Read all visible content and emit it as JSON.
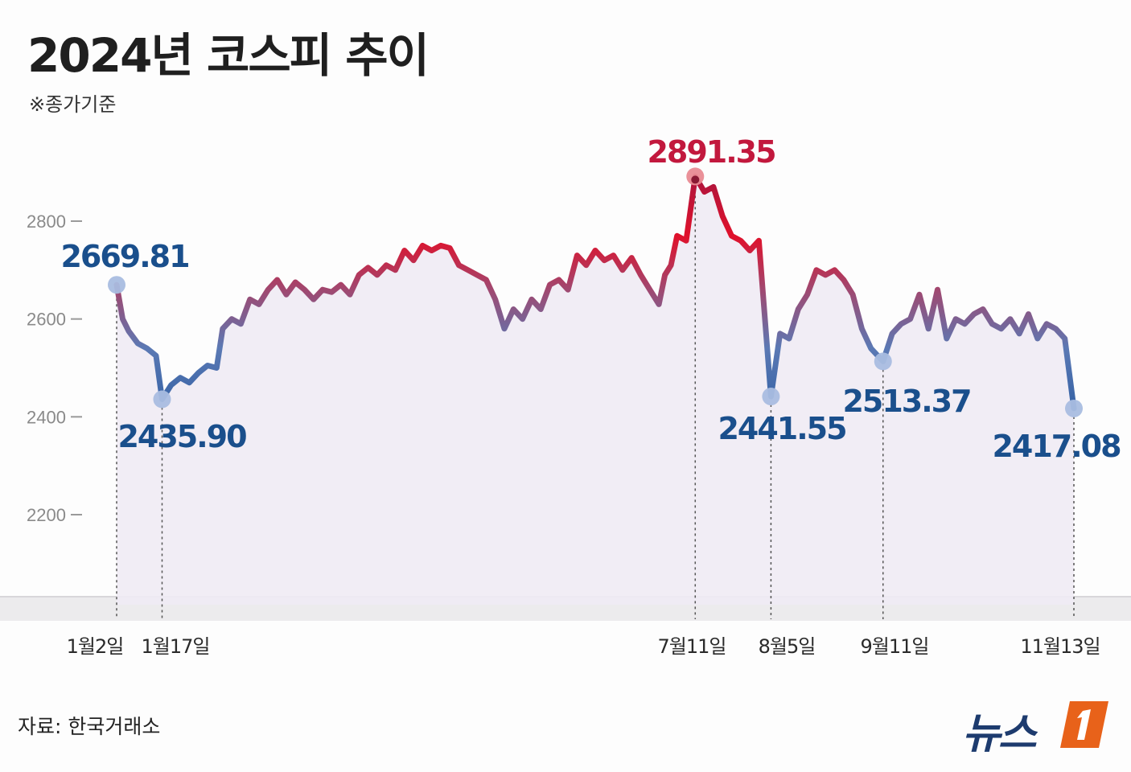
{
  "title": "2024년 코스피 추이",
  "subtitle": "※종가기준",
  "source": "자료: 한국거래소",
  "logo": {
    "text": "뉴스",
    "badge": "1"
  },
  "colors": {
    "blue": "#2f5fa3",
    "red": "#e0112b",
    "peak": "#c2183d",
    "label_blue": "#1a4f8c",
    "fill": "#efebf4"
  },
  "chart_data": {
    "type": "line",
    "title": "2024년 코스피 추이",
    "subtitle": "※종가기준",
    "ylim": [
      2200,
      2800
    ],
    "yticks": [
      2800,
      2600,
      2400,
      2200
    ],
    "ytick_labels": [
      "2800",
      "2600",
      "2400",
      "2200"
    ],
    "x_start": "2024-01-02",
    "x_end": "2024-11-13",
    "grid": false,
    "annotations": [
      {
        "date": "2024-01-02",
        "date_label": "1월2일",
        "value": 2669.81,
        "label": "2669.81",
        "color": "blue"
      },
      {
        "date": "2024-01-17",
        "date_label": "1월17일",
        "value": 2435.9,
        "label": "2435.90",
        "color": "blue"
      },
      {
        "date": "2024-07-11",
        "date_label": "7월11일",
        "value": 2891.35,
        "label": "2891.35",
        "color": "red"
      },
      {
        "date": "2024-08-05",
        "date_label": "8월5일",
        "value": 2441.55,
        "label": "2441.55",
        "color": "blue"
      },
      {
        "date": "2024-09-11",
        "date_label": "9월11일",
        "value": 2513.37,
        "label": "2513.37",
        "color": "blue"
      },
      {
        "date": "2024-11-13",
        "date_label": "11월13일",
        "value": 2417.08,
        "label": "2417.08",
        "color": "blue"
      }
    ],
    "series": [
      {
        "points": [
          [
            "2024-01-02",
            2669.81
          ],
          [
            "2024-01-04",
            2600
          ],
          [
            "2024-01-06",
            2575
          ],
          [
            "2024-01-09",
            2550
          ],
          [
            "2024-01-12",
            2540
          ],
          [
            "2024-01-15",
            2525
          ],
          [
            "2024-01-17",
            2435.9
          ],
          [
            "2024-01-20",
            2465
          ],
          [
            "2024-01-23",
            2480
          ],
          [
            "2024-01-26",
            2470
          ],
          [
            "2024-01-29",
            2490
          ],
          [
            "2024-02-01",
            2505
          ],
          [
            "2024-02-04",
            2500
          ],
          [
            "2024-02-06",
            2580
          ],
          [
            "2024-02-09",
            2600
          ],
          [
            "2024-02-12",
            2590
          ],
          [
            "2024-02-15",
            2640
          ],
          [
            "2024-02-18",
            2630
          ],
          [
            "2024-02-21",
            2660
          ],
          [
            "2024-02-24",
            2680
          ],
          [
            "2024-02-27",
            2650
          ],
          [
            "2024-03-01",
            2675
          ],
          [
            "2024-03-04",
            2660
          ],
          [
            "2024-03-07",
            2640
          ],
          [
            "2024-03-10",
            2660
          ],
          [
            "2024-03-13",
            2655
          ],
          [
            "2024-03-16",
            2670
          ],
          [
            "2024-03-19",
            2650
          ],
          [
            "2024-03-22",
            2690
          ],
          [
            "2024-03-25",
            2705
          ],
          [
            "2024-03-28",
            2690
          ],
          [
            "2024-03-31",
            2710
          ],
          [
            "2024-04-03",
            2700
          ],
          [
            "2024-04-06",
            2740
          ],
          [
            "2024-04-09",
            2720
          ],
          [
            "2024-04-12",
            2750
          ],
          [
            "2024-04-15",
            2740
          ],
          [
            "2024-04-18",
            2750
          ],
          [
            "2024-04-21",
            2745
          ],
          [
            "2024-04-24",
            2710
          ],
          [
            "2024-04-27",
            2700
          ],
          [
            "2024-04-30",
            2690
          ],
          [
            "2024-05-03",
            2680
          ],
          [
            "2024-05-06",
            2640
          ],
          [
            "2024-05-09",
            2580
          ],
          [
            "2024-05-12",
            2620
          ],
          [
            "2024-05-15",
            2600
          ],
          [
            "2024-05-18",
            2640
          ],
          [
            "2024-05-21",
            2620
          ],
          [
            "2024-05-24",
            2670
          ],
          [
            "2024-05-27",
            2680
          ],
          [
            "2024-05-30",
            2660
          ],
          [
            "2024-06-02",
            2730
          ],
          [
            "2024-06-05",
            2710
          ],
          [
            "2024-06-08",
            2740
          ],
          [
            "2024-06-11",
            2720
          ],
          [
            "2024-06-14",
            2730
          ],
          [
            "2024-06-17",
            2700
          ],
          [
            "2024-06-20",
            2725
          ],
          [
            "2024-06-23",
            2690
          ],
          [
            "2024-06-26",
            2660
          ],
          [
            "2024-06-29",
            2630
          ],
          [
            "2024-07-01",
            2690
          ],
          [
            "2024-07-03",
            2710
          ],
          [
            "2024-07-05",
            2770
          ],
          [
            "2024-07-08",
            2760
          ],
          [
            "2024-07-11",
            2891.35
          ],
          [
            "2024-07-14",
            2860
          ],
          [
            "2024-07-17",
            2870
          ],
          [
            "2024-07-20",
            2810
          ],
          [
            "2024-07-23",
            2770
          ],
          [
            "2024-07-26",
            2760
          ],
          [
            "2024-07-29",
            2740
          ],
          [
            "2024-08-01",
            2760
          ],
          [
            "2024-08-05",
            2441.55
          ],
          [
            "2024-08-08",
            2570
          ],
          [
            "2024-08-11",
            2560
          ],
          [
            "2024-08-14",
            2620
          ],
          [
            "2024-08-17",
            2650
          ],
          [
            "2024-08-20",
            2700
          ],
          [
            "2024-08-23",
            2690
          ],
          [
            "2024-08-26",
            2700
          ],
          [
            "2024-08-29",
            2680
          ],
          [
            "2024-09-01",
            2650
          ],
          [
            "2024-09-04",
            2580
          ],
          [
            "2024-09-07",
            2540
          ],
          [
            "2024-09-11",
            2513.37
          ],
          [
            "2024-09-14",
            2570
          ],
          [
            "2024-09-17",
            2590
          ],
          [
            "2024-09-20",
            2600
          ],
          [
            "2024-09-23",
            2650
          ],
          [
            "2024-09-26",
            2580
          ],
          [
            "2024-09-29",
            2660
          ],
          [
            "2024-10-02",
            2560
          ],
          [
            "2024-10-05",
            2600
          ],
          [
            "2024-10-08",
            2590
          ],
          [
            "2024-10-11",
            2610
          ],
          [
            "2024-10-14",
            2620
          ],
          [
            "2024-10-17",
            2590
          ],
          [
            "2024-10-20",
            2580
          ],
          [
            "2024-10-23",
            2600
          ],
          [
            "2024-10-26",
            2570
          ],
          [
            "2024-10-29",
            2610
          ],
          [
            "2024-11-01",
            2560
          ],
          [
            "2024-11-04",
            2590
          ],
          [
            "2024-11-07",
            2580
          ],
          [
            "2024-11-10",
            2560
          ],
          [
            "2024-11-13",
            2417.08
          ]
        ]
      }
    ]
  }
}
